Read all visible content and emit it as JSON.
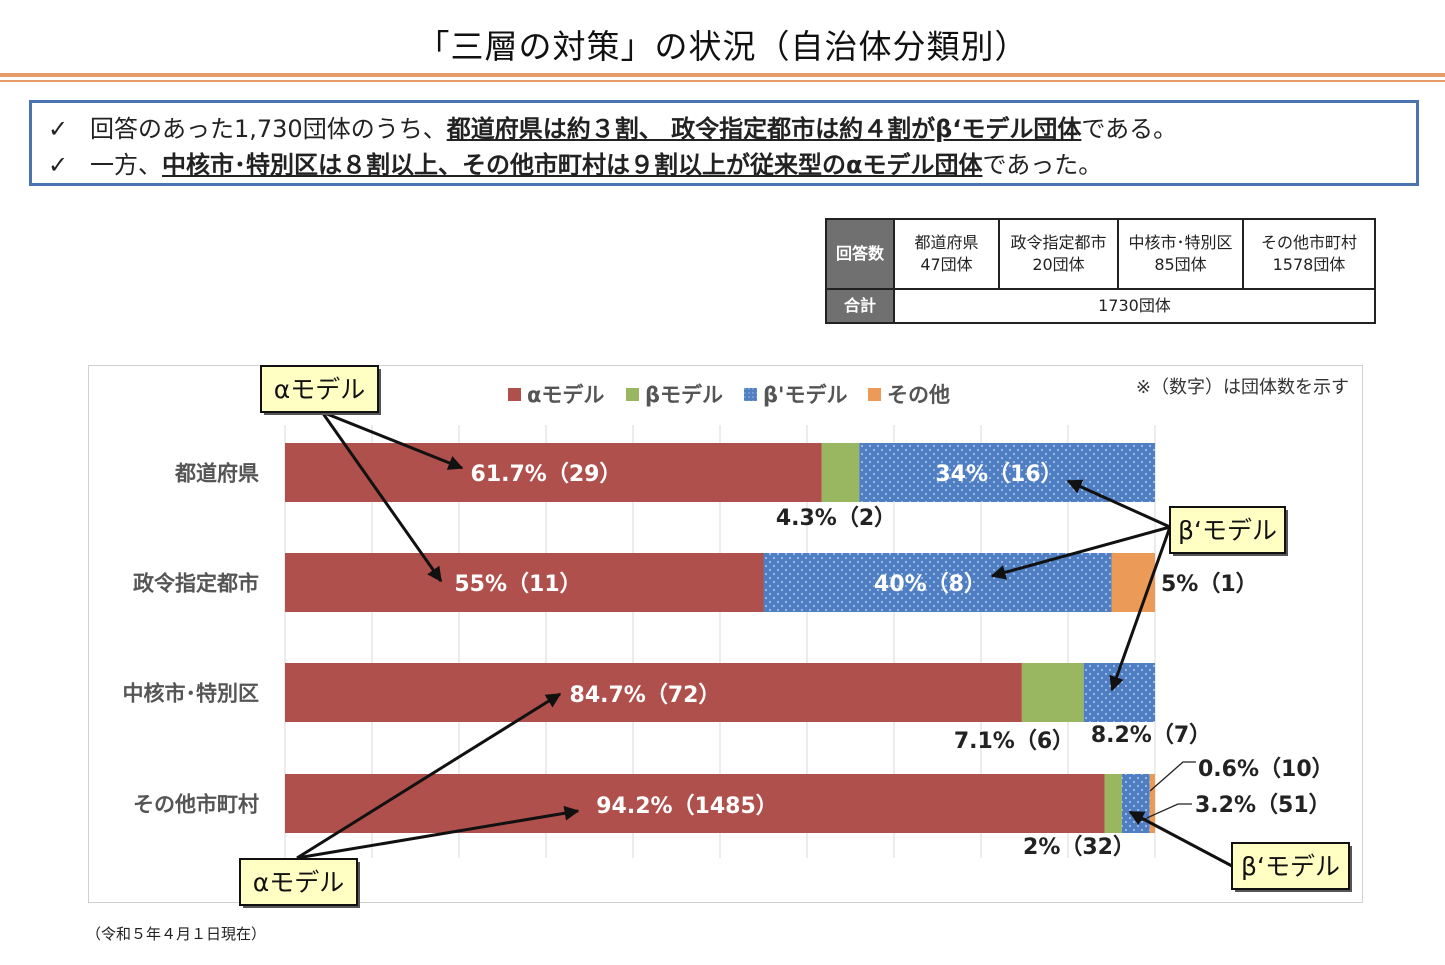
{
  "title": "「三層の対策」の状況（自治体分類別）",
  "summary": {
    "check_icon": "✓",
    "line1_pre": "回答のあった1,730団体のうち、",
    "line1_bold": "都道府県は約３割、 政令指定都市は約４割がβ‘モデル団体",
    "line1_post": "である。",
    "line2_pre": "一方、",
    "line2_bold": "中核市･特別区は８割以上、その他市町村は９割以上が従来型のαモデル団体",
    "line2_post": "であった。"
  },
  "counts_table": {
    "header_label": "回答数",
    "total_label": "合計",
    "total_value": "1730団体",
    "columns": [
      {
        "name": "都道府県",
        "count": "47団体"
      },
      {
        "name": "政令指定都市",
        "count": "20団体"
      },
      {
        "name": "中核市･特別区",
        "count": "85団体"
      },
      {
        "name": "その他市町村",
        "count": "1578団体"
      }
    ]
  },
  "chart_data": {
    "type": "bar",
    "orientation": "horizontal",
    "stacked": true,
    "categories": [
      "都道府県",
      "政令指定都市",
      "中核市･特別区",
      "その他市町村"
    ],
    "series": [
      {
        "name": "αモデル",
        "color": "#b0504c",
        "values": [
          61.7,
          55,
          84.7,
          94.2
        ],
        "labels": [
          "61.7%（29）",
          "55%（11）",
          "84.7%（72）",
          "94.2%（1485）"
        ]
      },
      {
        "name": "βモデル",
        "color": "#98b760",
        "values": [
          4.3,
          0,
          7.1,
          2
        ],
        "labels": [
          "4.3%（2）",
          "",
          "7.1%（6）",
          "2%（32）"
        ]
      },
      {
        "name": "β'モデル",
        "color": "#4f7fc2",
        "values": [
          34,
          40,
          8.2,
          3.2
        ],
        "labels": [
          "34%（16）",
          "40%（8）",
          "8.2%（7）",
          "3.2%（51）"
        ]
      },
      {
        "name": "その他",
        "color": "#ec9a57",
        "values": [
          0,
          5,
          0,
          0.6
        ],
        "labels": [
          "",
          "5%（1）",
          "",
          "0.6%（10）"
        ]
      }
    ],
    "xlim": [
      0,
      100
    ],
    "grid": true,
    "legend_position": "top",
    "note": "※（数字）は団体数を示す",
    "callouts": {
      "alpha": "αモデル",
      "beta_prime": "β‘モデル"
    }
  },
  "footnote": "（令和５年４月１日現在）"
}
